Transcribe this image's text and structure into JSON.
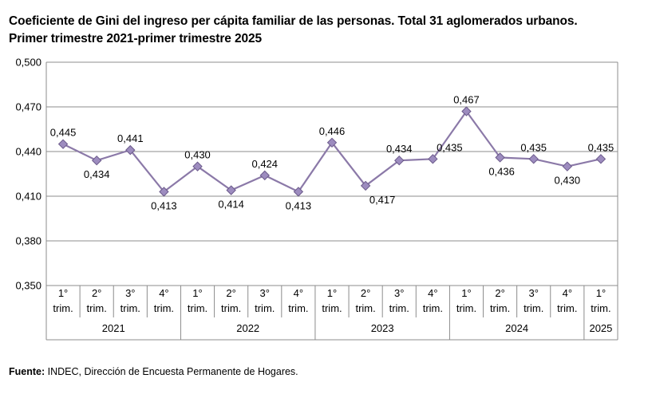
{
  "title": "Coeficiente de Gini del ingreso per cápita familiar de las personas. Total 31 aglomerados urbanos.",
  "subtitle": "Primer trimestre 2021-primer trimestre 2025",
  "footer": {
    "label": "Fuente:",
    "text": " INDEC, Dirección de Encuesta Permanente de Hogares."
  },
  "colors": {
    "line": "#8b79a8",
    "marker_fill": "#9d8cbf",
    "marker_stroke": "#6b5a8a",
    "grid": "#8c8c8c"
  },
  "chart_data": {
    "type": "line",
    "title": "Coeficiente de Gini del ingreso per cápita familiar de las personas. Total 31 aglomerados urbanos.",
    "subtitle": "Primer trimestre 2021-primer trimestre 2025",
    "ylim": [
      0.35,
      0.5
    ],
    "y_ticks": [
      "0,500",
      "0,470",
      "0,440",
      "0,410",
      "0,380",
      "0,350"
    ],
    "grid": true,
    "categories": [
      {
        "q": "1°",
        "t": "trim.",
        "year": "2021"
      },
      {
        "q": "2°",
        "t": "trim.",
        "year": "2021"
      },
      {
        "q": "3°",
        "t": "trim.",
        "year": "2021"
      },
      {
        "q": "4°",
        "t": "trim.",
        "year": "2021"
      },
      {
        "q": "1°",
        "t": "trim.",
        "year": "2022"
      },
      {
        "q": "2°",
        "t": "trim.",
        "year": "2022"
      },
      {
        "q": "3°",
        "t": "trim.",
        "year": "2022"
      },
      {
        "q": "4°",
        "t": "trim.",
        "year": "2022"
      },
      {
        "q": "1°",
        "t": "trim.",
        "year": "2023"
      },
      {
        "q": "2°",
        "t": "trim.",
        "year": "2023"
      },
      {
        "q": "3°",
        "t": "trim.",
        "year": "2023"
      },
      {
        "q": "4°",
        "t": "trim.",
        "year": "2023"
      },
      {
        "q": "1°",
        "t": "trim.",
        "year": "2024"
      },
      {
        "q": "2°",
        "t": "trim.",
        "year": "2024"
      },
      {
        "q": "3°",
        "t": "trim.",
        "year": "2024"
      },
      {
        "q": "4°",
        "t": "trim.",
        "year": "2024"
      },
      {
        "q": "1°",
        "t": "trim.",
        "year": "2025"
      }
    ],
    "years": [
      "2021",
      "2022",
      "2023",
      "2024",
      "2025"
    ],
    "series": [
      {
        "values": [
          0.445,
          0.434,
          0.441,
          0.413,
          0.43,
          0.414,
          0.424,
          0.413,
          0.446,
          0.417,
          0.434,
          0.435,
          0.467,
          0.436,
          0.435,
          0.43,
          0.435
        ],
        "labels": [
          "0,445",
          "0,434",
          "0,441",
          "0,413",
          "0,430",
          "0,414",
          "0,424",
          "0,413",
          "0,446",
          "0,417",
          "0,434",
          "0,435",
          "0,467",
          "0,436",
          "0,435",
          "0,430",
          "0,435"
        ]
      }
    ]
  }
}
